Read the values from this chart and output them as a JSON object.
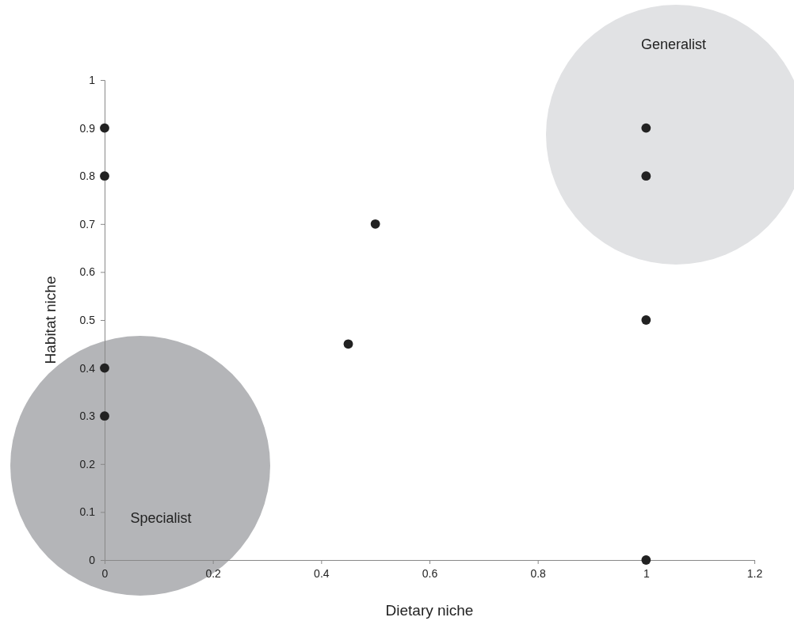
{
  "chart_data": {
    "type": "scatter",
    "xlabel": "Dietary niche",
    "ylabel": "Habitat niche",
    "x": [
      0,
      0,
      0,
      0,
      0.45,
      0.5,
      1,
      1,
      1,
      1
    ],
    "values": [
      0.9,
      0.8,
      0.4,
      0.3,
      0.45,
      0.7,
      0.9,
      0.8,
      0.5,
      0
    ],
    "color": "#222222",
    "marker": "circle",
    "grid": false,
    "xlim": [
      0,
      1.2
    ],
    "xticks": [
      0,
      0.2,
      0.4,
      0.6,
      0.8,
      1,
      1.2
    ],
    "ylim": [
      0,
      1
    ],
    "yticks": [
      0,
      0.1,
      0.2,
      0.3,
      0.4,
      0.5,
      0.6,
      0.7,
      0.8,
      0.9,
      1
    ],
    "annotations": [
      "Specialist",
      "Generalist"
    ]
  }
}
